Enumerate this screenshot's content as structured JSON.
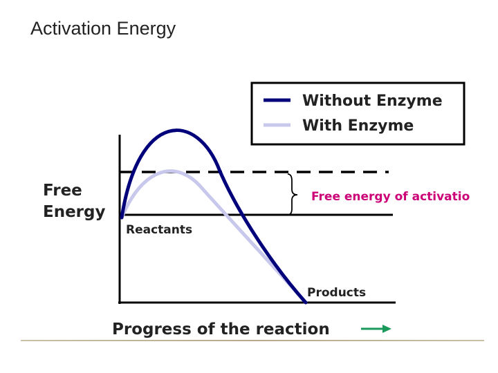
{
  "slide": {
    "title": "Activation Energy"
  },
  "diagram": {
    "legend": {
      "items": [
        {
          "label": "Without Enzyme",
          "color": "#00007a"
        },
        {
          "label": "With Enzyme",
          "color": "#c8c8ec"
        }
      ]
    },
    "y_axis_label": [
      "Free",
      "Energy"
    ],
    "x_axis_label": "Progress of the reaction",
    "annotation": "Free energy of activatio",
    "reactants_label": "Reactants",
    "products_label": "Products",
    "colors": {
      "axis": "#000000",
      "annotation": "#cc0077",
      "arrow": "#1a9a5a",
      "text": "#222222"
    }
  }
}
